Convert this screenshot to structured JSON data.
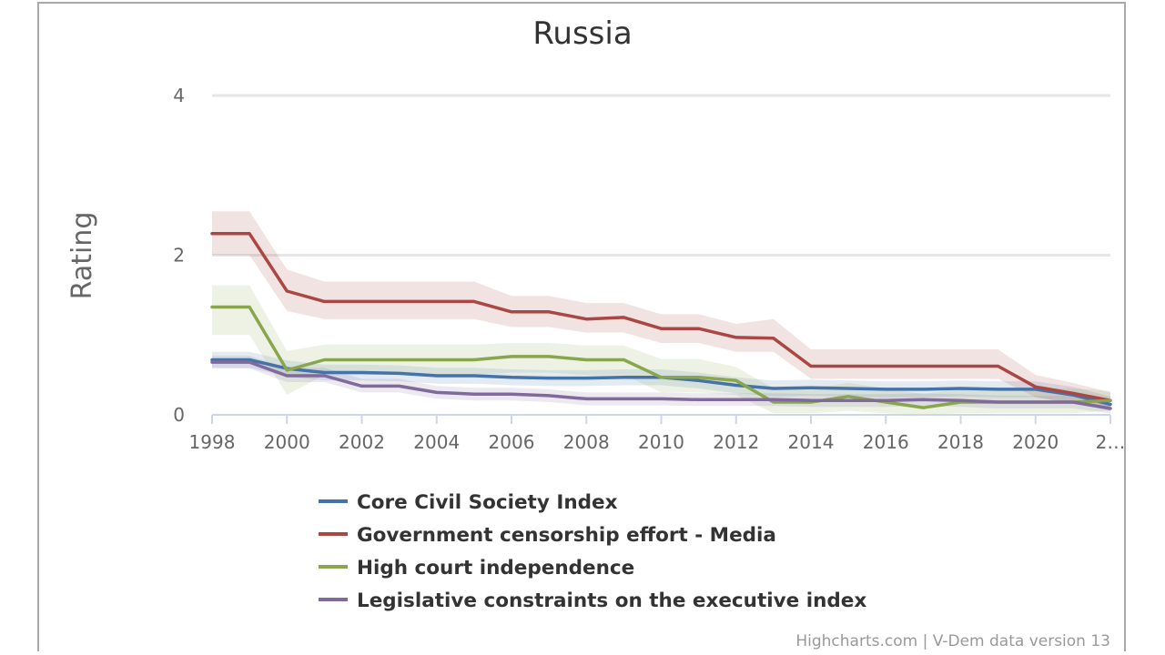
{
  "chart_data": {
    "type": "line",
    "title": "Russia",
    "ylabel": "Rating",
    "xlabel": "",
    "ylim": [
      0,
      4
    ],
    "yticks": [
      0,
      2,
      4
    ],
    "xlim": [
      1998,
      2022
    ],
    "xticks": [
      "1998",
      "2000",
      "2002",
      "2004",
      "2006",
      "2008",
      "2010",
      "2012",
      "2014",
      "2016",
      "2018",
      "2020",
      "2…"
    ],
    "grid": true,
    "legend_position": "bottom",
    "x": [
      1998,
      1999,
      2000,
      2001,
      2002,
      2003,
      2004,
      2005,
      2006,
      2007,
      2008,
      2009,
      2010,
      2011,
      2012,
      2013,
      2014,
      2015,
      2016,
      2017,
      2018,
      2019,
      2020,
      2021,
      2022
    ],
    "series": [
      {
        "name": "Core Civil Society Index",
        "color": "#4572a7",
        "values": [
          0.69,
          0.69,
          0.58,
          0.53,
          0.53,
          0.52,
          0.49,
          0.49,
          0.47,
          0.46,
          0.46,
          0.47,
          0.47,
          0.43,
          0.37,
          0.33,
          0.34,
          0.33,
          0.32,
          0.32,
          0.33,
          0.32,
          0.32,
          0.25,
          0.13
        ],
        "band": [
          [
            0.59,
            0.79
          ],
          [
            0.59,
            0.79
          ],
          [
            0.48,
            0.68
          ],
          [
            0.43,
            0.63
          ],
          [
            0.43,
            0.63
          ],
          [
            0.42,
            0.62
          ],
          [
            0.39,
            0.59
          ],
          [
            0.39,
            0.59
          ],
          [
            0.37,
            0.57
          ],
          [
            0.36,
            0.56
          ],
          [
            0.36,
            0.56
          ],
          [
            0.37,
            0.57
          ],
          [
            0.37,
            0.57
          ],
          [
            0.33,
            0.53
          ],
          [
            0.27,
            0.47
          ],
          [
            0.23,
            0.43
          ],
          [
            0.24,
            0.44
          ],
          [
            0.23,
            0.43
          ],
          [
            0.22,
            0.42
          ],
          [
            0.22,
            0.42
          ],
          [
            0.23,
            0.43
          ],
          [
            0.22,
            0.42
          ],
          [
            0.22,
            0.42
          ],
          [
            0.15,
            0.35
          ],
          [
            0.05,
            0.23
          ]
        ]
      },
      {
        "name": "Government censorship effort - Media",
        "color": "#aa4643",
        "values": [
          2.27,
          2.27,
          1.55,
          1.42,
          1.42,
          1.42,
          1.42,
          1.42,
          1.29,
          1.29,
          1.2,
          1.22,
          1.08,
          1.08,
          0.97,
          0.96,
          0.61,
          0.61,
          0.61,
          0.61,
          0.61,
          0.61,
          0.35,
          0.27,
          0.18
        ],
        "band": [
          [
            2.55,
            2.0
          ],
          [
            2.55,
            2.0
          ],
          [
            1.82,
            1.3
          ],
          [
            1.67,
            1.2
          ],
          [
            1.67,
            1.2
          ],
          [
            1.67,
            1.2
          ],
          [
            1.67,
            1.2
          ],
          [
            1.67,
            1.2
          ],
          [
            1.49,
            1.1
          ],
          [
            1.49,
            1.1
          ],
          [
            1.4,
            1.03
          ],
          [
            1.4,
            1.03
          ],
          [
            1.26,
            0.9
          ],
          [
            1.26,
            0.9
          ],
          [
            1.14,
            0.79
          ],
          [
            1.2,
            0.79
          ],
          [
            0.82,
            0.45
          ],
          [
            0.82,
            0.45
          ],
          [
            0.82,
            0.45
          ],
          [
            0.82,
            0.45
          ],
          [
            0.82,
            0.45
          ],
          [
            0.82,
            0.45
          ],
          [
            0.5,
            0.22
          ],
          [
            0.4,
            0.14
          ],
          [
            0.28,
            0.1
          ]
        ]
      },
      {
        "name": "High court independence",
        "color": "#89a54e",
        "values": [
          1.35,
          1.35,
          0.56,
          0.69,
          0.69,
          0.69,
          0.69,
          0.69,
          0.73,
          0.73,
          0.69,
          0.69,
          0.47,
          0.47,
          0.43,
          0.16,
          0.16,
          0.23,
          0.16,
          0.09,
          0.16,
          0.16,
          0.16,
          0.16,
          0.18
        ],
        "band": [
          [
            1.62,
            1.0
          ],
          [
            1.62,
            1.0
          ],
          [
            0.8,
            0.25
          ],
          [
            0.88,
            0.5
          ],
          [
            0.88,
            0.5
          ],
          [
            0.88,
            0.5
          ],
          [
            0.88,
            0.5
          ],
          [
            0.88,
            0.5
          ],
          [
            0.9,
            0.53
          ],
          [
            0.9,
            0.53
          ],
          [
            0.87,
            0.5
          ],
          [
            0.87,
            0.5
          ],
          [
            0.7,
            0.28
          ],
          [
            0.7,
            0.28
          ],
          [
            0.6,
            0.25
          ],
          [
            0.33,
            0.02
          ],
          [
            0.33,
            0.02
          ],
          [
            0.4,
            0.05
          ],
          [
            0.33,
            0.02
          ],
          [
            0.26,
            0.0
          ],
          [
            0.33,
            0.02
          ],
          [
            0.33,
            0.02
          ],
          [
            0.33,
            0.02
          ],
          [
            0.33,
            0.02
          ],
          [
            0.3,
            0.05
          ]
        ]
      },
      {
        "name": "Legislative constraints on the executive index",
        "color": "#80699b",
        "values": [
          0.66,
          0.66,
          0.49,
          0.49,
          0.36,
          0.36,
          0.28,
          0.26,
          0.26,
          0.24,
          0.2,
          0.2,
          0.2,
          0.19,
          0.19,
          0.19,
          0.18,
          0.18,
          0.18,
          0.19,
          0.18,
          0.16,
          0.16,
          0.16,
          0.08
        ],
        "band": [
          [
            0.74,
            0.58
          ],
          [
            0.74,
            0.58
          ],
          [
            0.59,
            0.41
          ],
          [
            0.59,
            0.41
          ],
          [
            0.45,
            0.28
          ],
          [
            0.45,
            0.28
          ],
          [
            0.36,
            0.2
          ],
          [
            0.34,
            0.18
          ],
          [
            0.34,
            0.18
          ],
          [
            0.32,
            0.16
          ],
          [
            0.28,
            0.12
          ],
          [
            0.28,
            0.12
          ],
          [
            0.28,
            0.12
          ],
          [
            0.27,
            0.11
          ],
          [
            0.27,
            0.11
          ],
          [
            0.27,
            0.11
          ],
          [
            0.26,
            0.1
          ],
          [
            0.26,
            0.1
          ],
          [
            0.26,
            0.1
          ],
          [
            0.27,
            0.11
          ],
          [
            0.26,
            0.1
          ],
          [
            0.24,
            0.08
          ],
          [
            0.24,
            0.08
          ],
          [
            0.24,
            0.08
          ],
          [
            0.15,
            0.02
          ]
        ]
      }
    ]
  },
  "credits": "Highcharts.com | V-Dem data version 13"
}
